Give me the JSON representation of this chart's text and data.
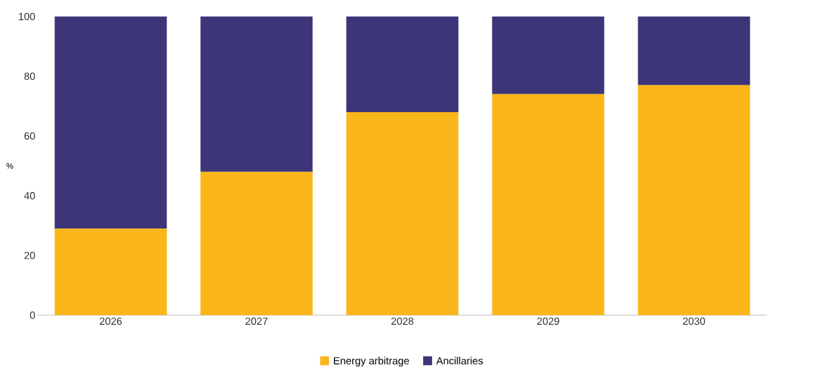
{
  "chart_data": {
    "type": "bar",
    "stacked": true,
    "ylabel": "%",
    "categories": [
      "2026",
      "2027",
      "2028",
      "2029",
      "2030"
    ],
    "series": [
      {
        "name": "Energy arbitrage",
        "color": "#fbb61b",
        "values": [
          29,
          48,
          68,
          74,
          77
        ]
      },
      {
        "name": "Ancillaries",
        "color": "#3c3577",
        "values": [
          71,
          52,
          32,
          26,
          23
        ]
      }
    ],
    "ylim": [
      0,
      100
    ],
    "yticks": [
      0,
      20,
      40,
      60,
      80,
      100
    ],
    "legend": "bottom",
    "grid": false
  }
}
